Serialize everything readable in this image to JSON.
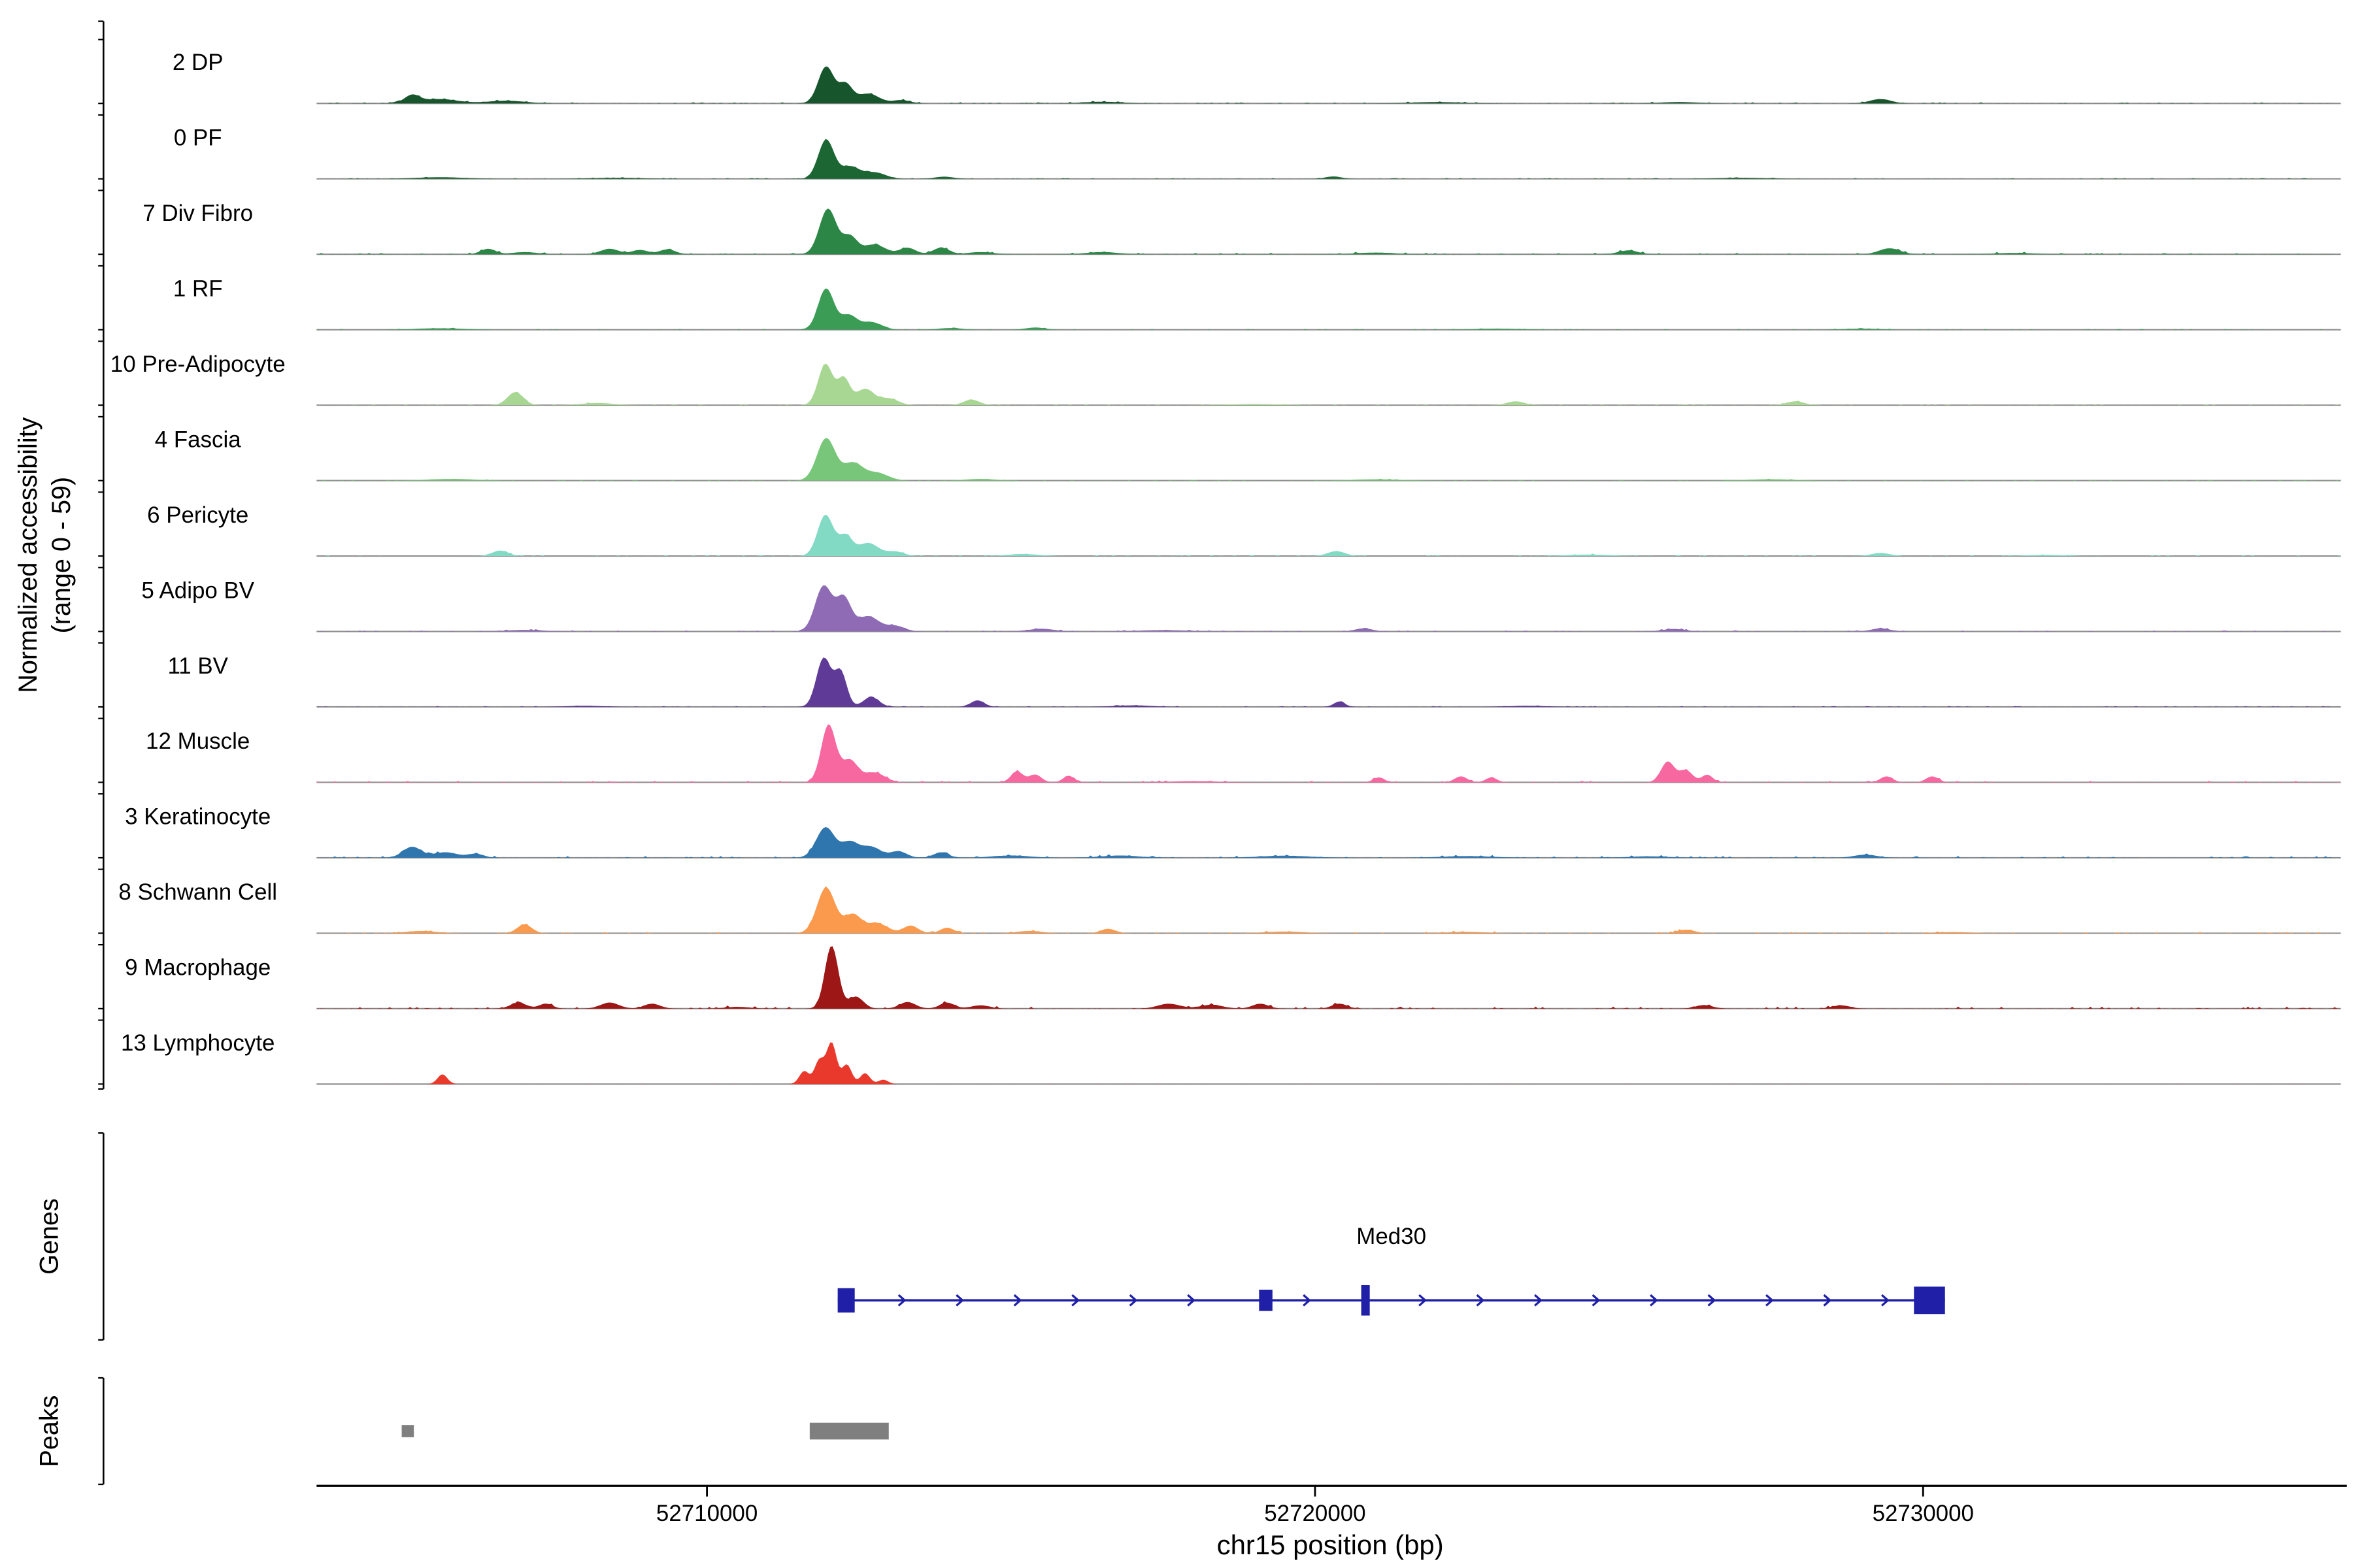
{
  "figure": {
    "y_axis_label_line1": "Normalized accessibility",
    "y_axis_label_line2": "(range 0 - 59)",
    "genes_section_label": "Genes",
    "peaks_section_label": "Peaks",
    "x_axis_title": "chr15 position (bp)"
  },
  "chart_data": {
    "type": "area",
    "subtype": "genome_coverage_tracks",
    "chrom": "chr15",
    "xlim": [
      52703580,
      52736870
    ],
    "value_range": [
      0,
      59
    ],
    "x_ticks": [
      {
        "pos": 52710000,
        "label": "52710000"
      },
      {
        "pos": 52720000,
        "label": "52720000"
      },
      {
        "pos": 52730000,
        "label": "52730000"
      }
    ],
    "tracks": [
      {
        "label": "2 DP",
        "color": "#17562d",
        "noise": 0.8,
        "bumps": [
          [
            52705150,
            7,
            120
          ],
          [
            52705600,
            4,
            300
          ],
          [
            52706700,
            2.5,
            300
          ],
          [
            52711960,
            34,
            130
          ],
          [
            52712280,
            17,
            110
          ],
          [
            52712650,
            9,
            180
          ],
          [
            52713200,
            3,
            140
          ],
          [
            52716500,
            1.5,
            300
          ],
          [
            52722000,
            1.2,
            400
          ],
          [
            52726000,
            1.2,
            300
          ],
          [
            52729300,
            4,
            170
          ]
        ]
      },
      {
        "label": "0 PF",
        "color": "#1b6633",
        "noise": 0.5,
        "bumps": [
          [
            52705600,
            1.5,
            400
          ],
          [
            52708500,
            1,
            400
          ],
          [
            52711960,
            36,
            130
          ],
          [
            52712350,
            11,
            150
          ],
          [
            52712750,
            6,
            180
          ],
          [
            52713900,
            2,
            150
          ],
          [
            52720300,
            2.2,
            130
          ],
          [
            52727000,
            1,
            400
          ]
        ]
      },
      {
        "label": "7 Div Fibro",
        "color": "#2c8747",
        "noise": 1.0,
        "bumps": [
          [
            52706400,
            5,
            120
          ],
          [
            52707000,
            2,
            200
          ],
          [
            52708400,
            5,
            150
          ],
          [
            52708900,
            4,
            130
          ],
          [
            52709350,
            4.5,
            130
          ],
          [
            52711990,
            42,
            140
          ],
          [
            52712350,
            16,
            120
          ],
          [
            52712750,
            9,
            180
          ],
          [
            52713300,
            6,
            130
          ],
          [
            52713850,
            6,
            130
          ],
          [
            52714500,
            2,
            200
          ],
          [
            52716500,
            2,
            250
          ],
          [
            52721000,
            1.5,
            300
          ],
          [
            52725150,
            3.5,
            160
          ],
          [
            52729450,
            5.5,
            170
          ],
          [
            52731500,
            1.2,
            300
          ]
        ]
      },
      {
        "label": "1 RF",
        "color": "#3a9c55",
        "noise": 0.5,
        "bumps": [
          [
            52705600,
            1.3,
            400
          ],
          [
            52711960,
            38,
            130
          ],
          [
            52712330,
            13,
            130
          ],
          [
            52712700,
            7,
            170
          ],
          [
            52714000,
            1.5,
            200
          ],
          [
            52715400,
            2,
            160
          ],
          [
            52723000,
            1,
            400
          ],
          [
            52729000,
            1,
            300
          ]
        ]
      },
      {
        "label": "10 Pre-Adipocyte",
        "color": "#a8d793",
        "noise": 0.6,
        "bumps": [
          [
            52706850,
            12,
            130
          ],
          [
            52708200,
            2,
            250
          ],
          [
            52711950,
            38,
            120
          ],
          [
            52712250,
            24,
            100
          ],
          [
            52712600,
            15,
            150
          ],
          [
            52713000,
            6,
            150
          ],
          [
            52714350,
            5,
            130
          ],
          [
            52719000,
            1,
            400
          ],
          [
            52723300,
            3.5,
            140
          ],
          [
            52727900,
            3.5,
            140
          ]
        ]
      },
      {
        "label": "4 Fascia",
        "color": "#78c679",
        "noise": 0.5,
        "bumps": [
          [
            52705800,
            1.5,
            400
          ],
          [
            52711960,
            39,
            150
          ],
          [
            52712400,
            16,
            160
          ],
          [
            52712800,
            7,
            180
          ],
          [
            52714500,
            1.5,
            250
          ],
          [
            52721000,
            1.2,
            400
          ],
          [
            52727500,
            1.2,
            400
          ]
        ]
      },
      {
        "label": "6 Pericyte",
        "color": "#82d9c4",
        "noise": 0.7,
        "bumps": [
          [
            52706600,
            5,
            130
          ],
          [
            52711950,
            38,
            130
          ],
          [
            52712280,
            18,
            110
          ],
          [
            52712650,
            12,
            170
          ],
          [
            52713100,
            4,
            140
          ],
          [
            52715200,
            1.8,
            250
          ],
          [
            52720350,
            4.5,
            140
          ],
          [
            52724500,
            1.3,
            350
          ],
          [
            52729300,
            2.8,
            150
          ],
          [
            52732000,
            1,
            300
          ]
        ]
      },
      {
        "label": "5 Adipo BV",
        "color": "#8e6bb4",
        "noise": 0.7,
        "bumps": [
          [
            52707000,
            1.4,
            300
          ],
          [
            52711920,
            42,
            140
          ],
          [
            52712250,
            30,
            120
          ],
          [
            52712650,
            14,
            180
          ],
          [
            52713100,
            5,
            150
          ],
          [
            52715500,
            2.5,
            200
          ],
          [
            52717500,
            1.2,
            400
          ],
          [
            52720800,
            2.8,
            140
          ],
          [
            52725900,
            2.3,
            180
          ],
          [
            52729300,
            2.8,
            150
          ]
        ]
      },
      {
        "label": "11 BV",
        "color": "#5f3b97",
        "noise": 0.5,
        "bumps": [
          [
            52708000,
            1,
            300
          ],
          [
            52711920,
            45,
            120
          ],
          [
            52712200,
            32,
            100
          ],
          [
            52712700,
            9,
            130
          ],
          [
            52714450,
            6,
            110
          ],
          [
            52717000,
            1.4,
            300
          ],
          [
            52720400,
            5,
            90
          ],
          [
            52723500,
            1,
            300
          ]
        ]
      },
      {
        "label": "12 Muscle",
        "color": "#f768a1",
        "noise": 1.0,
        "bumps": [
          [
            52712000,
            53,
            120
          ],
          [
            52712350,
            20,
            130
          ],
          [
            52712750,
            9,
            170
          ],
          [
            52715100,
            10,
            100
          ],
          [
            52715400,
            7,
            100
          ],
          [
            52715950,
            6,
            90
          ],
          [
            52718000,
            1,
            400
          ],
          [
            52721050,
            4.5,
            90
          ],
          [
            52722400,
            5.5,
            100
          ],
          [
            52722900,
            4.5,
            90
          ],
          [
            52725800,
            19,
            110
          ],
          [
            52726100,
            11,
            110
          ],
          [
            52726450,
            7,
            90
          ],
          [
            52729400,
            5.5,
            100
          ],
          [
            52730150,
            5.5,
            100
          ]
        ]
      },
      {
        "label": "3 Keratinocyte",
        "color": "#3076ae",
        "noise": 1.2,
        "bumps": [
          [
            52705150,
            10,
            150
          ],
          [
            52705700,
            5,
            200
          ],
          [
            52706200,
            3.5,
            130
          ],
          [
            52711950,
            28,
            150
          ],
          [
            52712350,
            14,
            140
          ],
          [
            52712700,
            10,
            160
          ],
          [
            52713150,
            6,
            130
          ],
          [
            52713850,
            5,
            120
          ],
          [
            52715000,
            2,
            300
          ],
          [
            52716800,
            2,
            300
          ],
          [
            52719500,
            1.8,
            400
          ],
          [
            52722500,
            1.5,
            400
          ],
          [
            52725500,
            1.3,
            300
          ],
          [
            52729050,
            2.8,
            180
          ]
        ]
      },
      {
        "label": "8 Schwann Cell",
        "color": "#fb9a4d",
        "noise": 0.9,
        "bumps": [
          [
            52705300,
            2,
            250
          ],
          [
            52707000,
            8,
            120
          ],
          [
            52711960,
            42,
            150
          ],
          [
            52712400,
            17,
            140
          ],
          [
            52712800,
            9,
            170
          ],
          [
            52713350,
            7,
            120
          ],
          [
            52713950,
            5,
            110
          ],
          [
            52715300,
            2,
            200
          ],
          [
            52716600,
            4,
            120
          ],
          [
            52719500,
            1.5,
            300
          ],
          [
            52722500,
            1.2,
            300
          ],
          [
            52726100,
            3.2,
            140
          ],
          [
            52730500,
            1,
            300
          ]
        ]
      },
      {
        "label": "9 Macrophage",
        "color": "#9e1717",
        "noise": 1.3,
        "bumps": [
          [
            52706900,
            5.5,
            130
          ],
          [
            52707350,
            4.5,
            110
          ],
          [
            52708400,
            5.5,
            150
          ],
          [
            52709100,
            4.5,
            130
          ],
          [
            52710500,
            1.5,
            200
          ],
          [
            52712050,
            58,
            110
          ],
          [
            52712450,
            11,
            120
          ],
          [
            52713300,
            6,
            130
          ],
          [
            52713950,
            5.5,
            120
          ],
          [
            52714500,
            3,
            150
          ],
          [
            52717600,
            4.5,
            180
          ],
          [
            52718300,
            3.5,
            180
          ],
          [
            52719100,
            4.5,
            130
          ],
          [
            52720400,
            4.5,
            120
          ],
          [
            52726400,
            3.2,
            140
          ],
          [
            52728650,
            3,
            140
          ]
        ]
      },
      {
        "label": "13 Lymphocyte",
        "color": "#e8392c",
        "noise": 0.12,
        "bumps": [
          [
            52705650,
            9,
            80
          ],
          [
            52711600,
            12,
            80
          ],
          [
            52711850,
            22,
            80
          ],
          [
            52712050,
            38,
            80
          ],
          [
            52712300,
            18,
            80
          ],
          [
            52712600,
            10,
            80
          ],
          [
            52712900,
            4,
            80
          ]
        ]
      }
    ],
    "genes": [
      {
        "name": "Med30",
        "strand": "+",
        "start": 52712150,
        "end": 52730360,
        "color": "#1f1fa8",
        "exons": [
          [
            52712150,
            52712430,
            16
          ],
          [
            52719080,
            52719300,
            14
          ],
          [
            52720760,
            52720900,
            20
          ],
          [
            52729850,
            52730360,
            18
          ]
        ]
      }
    ],
    "peaks": [
      {
        "start": 52704980,
        "end": 52705180,
        "height": 8
      },
      {
        "start": 52711690,
        "end": 52712990,
        "height": 11
      }
    ],
    "peak_color": "#7f7f7f"
  }
}
